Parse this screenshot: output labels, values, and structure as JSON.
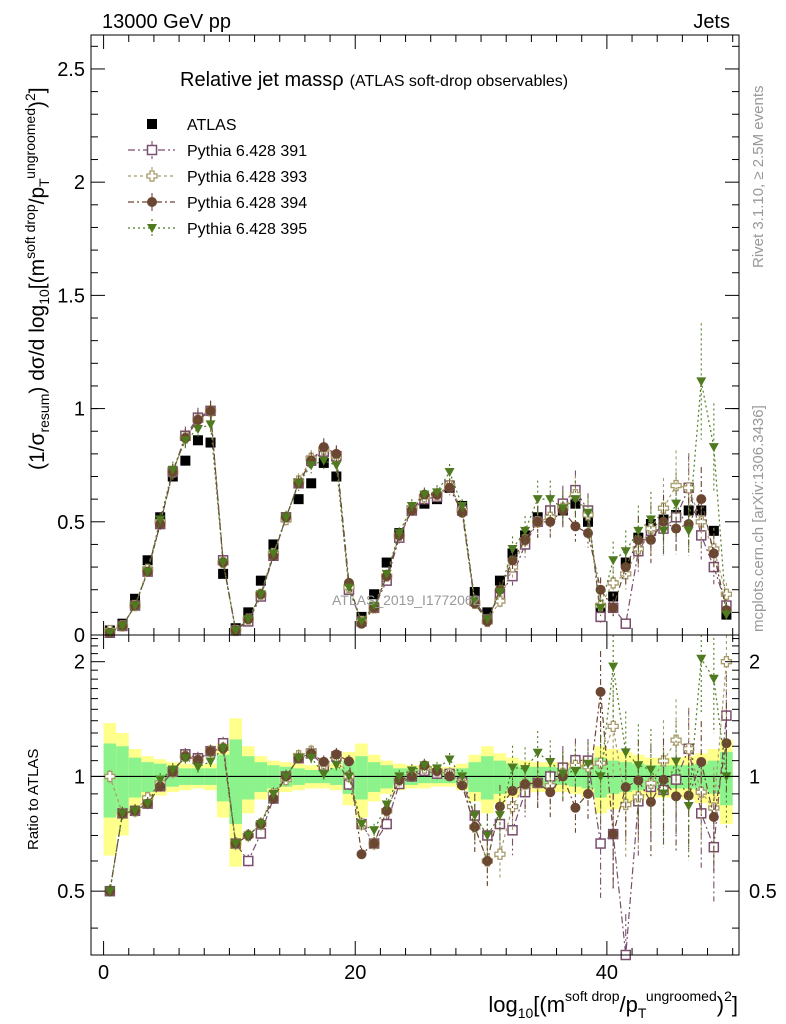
{
  "header": {
    "left": "13000 GeV pp",
    "right": "Jets"
  },
  "side_texts": {
    "rivet": "Rivet 3.1.10, ≥ 2.5M events",
    "mcplots": "mcplots.cern.ch [arXiv:1306.3436]"
  },
  "watermark": "ATLAS_2019_I1772062",
  "chart_data": [
    {
      "type": "scatter",
      "title": "Relative jet massρ",
      "subtitle": "(ATLAS soft-drop observables)",
      "ylabel": "(1/σresum) dσ/d log10[(m^softdrop/pT^ungroomed)²]",
      "ylim": [
        0,
        2.65
      ],
      "xlim": [
        -1,
        50.5
      ],
      "yticks": [
        0,
        0.5,
        1,
        1.5,
        2,
        2.5
      ],
      "yticklabels": [
        "0",
        "0.5",
        "1",
        "1.5",
        "2",
        "2.5"
      ],
      "legend": [
        "ATLAS",
        "Pythia 6.428 391",
        "Pythia 6.428 393",
        "Pythia 6.428 394",
        "Pythia 6.428 395"
      ],
      "legend_placement": "top-left",
      "x": [
        0.5,
        1.5,
        2.5,
        3.5,
        4.5,
        5.5,
        6.5,
        7.5,
        8.5,
        9.5,
        10.5,
        11.5,
        12.5,
        13.5,
        14.5,
        15.5,
        16.5,
        17.5,
        18.5,
        19.5,
        20.5,
        21.5,
        22.5,
        23.5,
        24.5,
        25.5,
        26.5,
        27.5,
        28.5,
        29.5,
        30.5,
        31.5,
        32.5,
        33.5,
        34.5,
        35.5,
        36.5,
        37.5,
        38.5,
        39.5,
        40.5,
        41.5,
        42.5,
        43.5,
        44.5,
        45.5,
        46.5,
        47.5,
        48.5,
        49.5
      ],
      "series": [
        {
          "name": "ATLAS",
          "values": [
            0.02,
            0.05,
            0.16,
            0.33,
            0.52,
            0.7,
            0.77,
            0.86,
            0.85,
            0.27,
            0.03,
            0.1,
            0.24,
            0.4,
            0.52,
            0.6,
            0.67,
            0.76,
            0.7,
            0.21,
            0.08,
            0.18,
            0.32,
            0.45,
            0.55,
            0.58,
            0.6,
            0.65,
            0.57,
            0.19,
            0.1,
            0.24,
            0.36,
            0.44,
            0.52,
            0.55,
            0.55,
            0.58,
            0.5,
            0.12,
            0.17,
            0.32,
            0.43,
            0.49,
            0.51,
            0.53,
            0.55,
            0.55,
            0.46,
            0.09
          ]
        },
        {
          "name": "Pythia 6.428 391",
          "values": [
            0.01,
            0.04,
            0.13,
            0.28,
            0.49,
            0.72,
            0.88,
            0.96,
            0.99,
            0.33,
            0.02,
            0.06,
            0.17,
            0.35,
            0.52,
            0.67,
            0.77,
            0.81,
            0.79,
            0.2,
            0.06,
            0.12,
            0.24,
            0.43,
            0.55,
            0.6,
            0.61,
            0.66,
            0.55,
            0.15,
            0.07,
            0.18,
            0.26,
            0.4,
            0.5,
            0.55,
            0.58,
            0.64,
            0.55,
            0.08,
            0.12,
            0.05,
            0.37,
            0.46,
            0.47,
            0.52,
            0.65,
            0.44,
            0.3,
            0.13
          ]
        },
        {
          "name": "Pythia 6.428 393",
          "values": [
            0.02,
            0.04,
            0.13,
            0.29,
            0.5,
            0.72,
            0.87,
            0.95,
            0.99,
            0.32,
            0.02,
            0.07,
            0.18,
            0.36,
            0.51,
            0.68,
            0.78,
            0.82,
            0.79,
            0.21,
            0.06,
            0.12,
            0.26,
            0.44,
            0.56,
            0.61,
            0.62,
            0.66,
            0.55,
            0.14,
            0.06,
            0.15,
            0.3,
            0.42,
            0.5,
            0.52,
            0.56,
            0.62,
            0.53,
            0.13,
            0.23,
            0.27,
            0.38,
            0.47,
            0.56,
            0.66,
            0.65,
            0.5,
            0.38,
            0.18
          ]
        },
        {
          "name": "Pythia 6.428 394",
          "values": [
            0.01,
            0.04,
            0.13,
            0.28,
            0.49,
            0.72,
            0.87,
            0.95,
            0.99,
            0.32,
            0.02,
            0.07,
            0.18,
            0.35,
            0.52,
            0.67,
            0.77,
            0.83,
            0.8,
            0.23,
            0.05,
            0.12,
            0.26,
            0.44,
            0.55,
            0.62,
            0.62,
            0.65,
            0.54,
            0.14,
            0.06,
            0.2,
            0.33,
            0.42,
            0.5,
            0.5,
            0.55,
            0.48,
            0.45,
            0.2,
            0.12,
            0.3,
            0.42,
            0.42,
            0.5,
            0.47,
            0.49,
            0.6,
            0.36,
            0.11
          ]
        },
        {
          "name": "Pythia 6.428 395",
          "values": [
            0.01,
            0.04,
            0.13,
            0.28,
            0.51,
            0.73,
            0.86,
            0.91,
            0.93,
            0.32,
            0.02,
            0.07,
            0.18,
            0.36,
            0.52,
            0.67,
            0.75,
            0.77,
            0.75,
            0.21,
            0.06,
            0.13,
            0.27,
            0.45,
            0.57,
            0.62,
            0.63,
            0.72,
            0.57,
            0.15,
            0.07,
            0.19,
            0.38,
            0.46,
            0.6,
            0.6,
            0.56,
            0.6,
            0.54,
            0.12,
            0.33,
            0.37,
            0.46,
            0.51,
            0.46,
            0.58,
            0.46,
            1.12,
            0.83,
            0.09
          ]
        }
      ]
    },
    {
      "type": "scatter",
      "ylabel": "Ratio to ATLAS",
      "xlabel": "log10[(m^softdrop/pT^ungroomed)²]",
      "ylim": [
        0.34,
        2.35
      ],
      "xlim": [
        -1,
        50.5
      ],
      "yticks": [
        0.5,
        1,
        2
      ],
      "yticklabels": [
        "0.5",
        "1",
        "2"
      ],
      "xticks": [
        0,
        20,
        40
      ],
      "xticklabels": [
        "0",
        "20",
        "40"
      ],
      "band_inner": [
        0.22,
        0.2,
        0.12,
        0.09,
        0.08,
        0.06,
        0.05,
        0.05,
        0.05,
        0.14,
        0.25,
        0.13,
        0.09,
        0.07,
        0.06,
        0.05,
        0.04,
        0.04,
        0.05,
        0.1,
        0.13,
        0.09,
        0.07,
        0.05,
        0.05,
        0.04,
        0.04,
        0.04,
        0.05,
        0.09,
        0.13,
        0.1,
        0.08,
        0.06,
        0.06,
        0.06,
        0.05,
        0.06,
        0.07,
        0.12,
        0.1,
        0.09,
        0.08,
        0.07,
        0.07,
        0.07,
        0.07,
        0.08,
        0.1,
        0.16
      ],
      "band_outer": [
        0.38,
        0.3,
        0.18,
        0.13,
        0.11,
        0.09,
        0.08,
        0.07,
        0.08,
        0.22,
        0.42,
        0.2,
        0.13,
        0.1,
        0.09,
        0.08,
        0.07,
        0.07,
        0.08,
        0.16,
        0.22,
        0.14,
        0.1,
        0.08,
        0.07,
        0.07,
        0.06,
        0.06,
        0.08,
        0.14,
        0.2,
        0.15,
        0.12,
        0.1,
        0.09,
        0.09,
        0.09,
        0.1,
        0.12,
        0.2,
        0.18,
        0.16,
        0.14,
        0.12,
        0.12,
        0.12,
        0.13,
        0.15,
        0.18,
        0.25
      ]
    }
  ]
}
